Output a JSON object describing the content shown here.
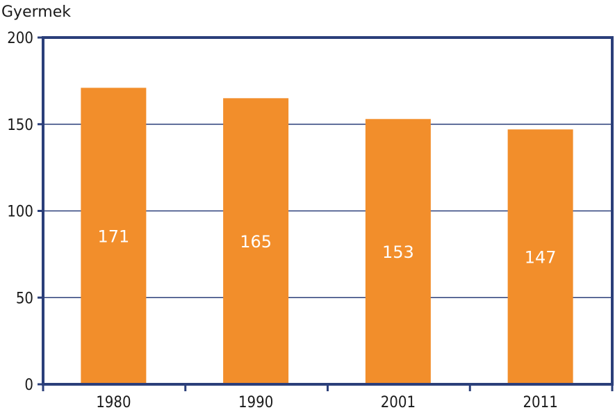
{
  "chart_data": {
    "type": "bar",
    "title": "",
    "xlabel": "",
    "ylabel": "Gyermek",
    "categories": [
      "1980",
      "1990",
      "2001",
      "2011"
    ],
    "series": [
      {
        "values": [
          171,
          165,
          153,
          147
        ]
      }
    ],
    "data_labels": [
      "171",
      "165",
      "153",
      "147"
    ],
    "ylim": [
      0,
      200
    ],
    "yticks": [
      0,
      50,
      100,
      150,
      200
    ],
    "ytick_labels": [
      "0",
      "50",
      "100",
      "150",
      "200"
    ],
    "grid": true,
    "legend": "none"
  },
  "colors": {
    "bar": "#F28E2B",
    "axis": "#2B3F7A",
    "grid": "#2B3F7A",
    "data_label": "#FFFFFF"
  }
}
